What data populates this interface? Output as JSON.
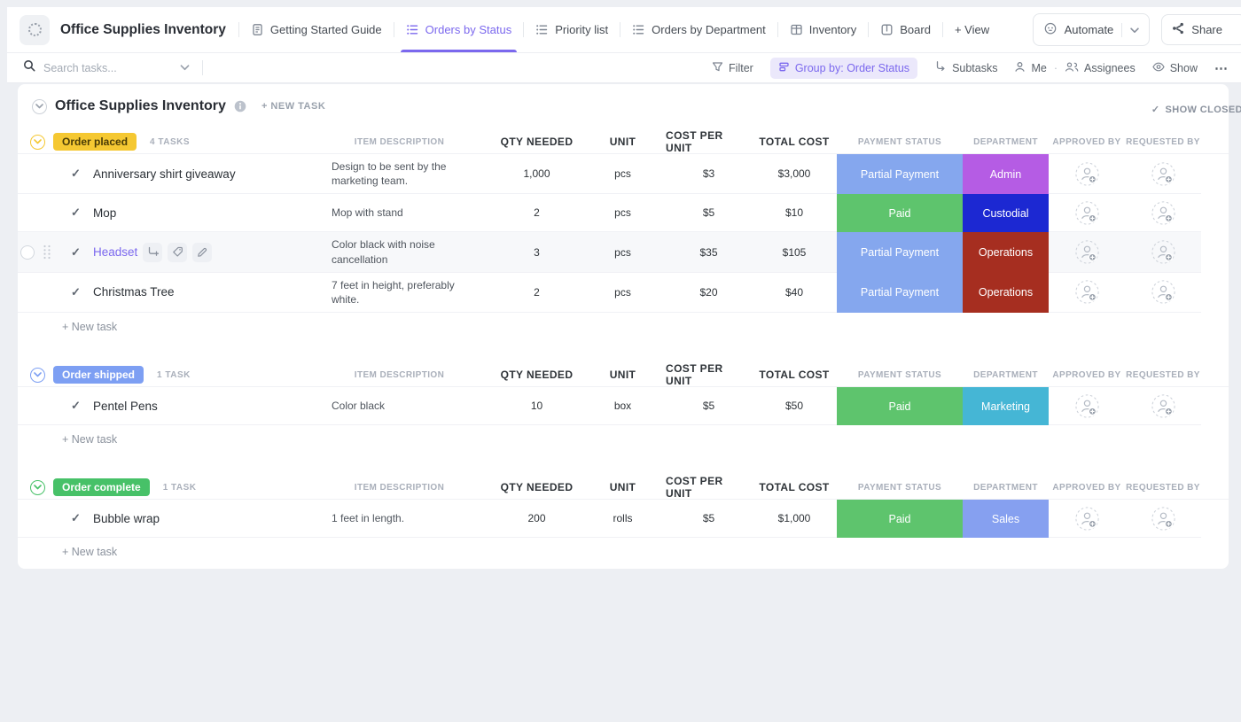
{
  "topbar": {
    "title": "Office Supplies Inventory",
    "tabs": [
      {
        "label": "Getting Started Guide",
        "icon": "doc-icon",
        "active": false
      },
      {
        "label": "Orders by Status",
        "icon": "list-icon",
        "active": true
      },
      {
        "label": "Priority list",
        "icon": "list-icon",
        "active": false
      },
      {
        "label": "Orders by Department",
        "icon": "list-icon",
        "active": false
      },
      {
        "label": "Inventory",
        "icon": "table-icon",
        "active": false
      },
      {
        "label": "Board",
        "icon": "board-icon",
        "active": false
      }
    ],
    "add_view_label": "+ View",
    "automate_label": "Automate",
    "share_label": "Share",
    "accent_color": "#7b68ee"
  },
  "toolbar": {
    "search_placeholder": "Search tasks...",
    "filter_label": "Filter",
    "group_by_label": "Group by: Order Status",
    "subtasks_label": "Subtasks",
    "me_label": "Me",
    "assignees_label": "Assignees",
    "show_label": "Show",
    "more_label": "⋯"
  },
  "list": {
    "title": "Office Supplies Inventory",
    "new_task_header_label": "+ NEW TASK",
    "show_closed_label": "SHOW CLOSED",
    "new_task_label": "+ New task",
    "columns": [
      "ITEM DESCRIPTION",
      "QTY NEEDED",
      "UNIT",
      "COST PER UNIT",
      "TOTAL COST",
      "PAYMENT STATUS",
      "DEPARTMENT",
      "APPROVED BY",
      "REQUESTED BY"
    ],
    "groups": [
      {
        "status": "Order placed",
        "count_label": "4 TASKS",
        "color": "#f5c832",
        "text_color": "#4a3c06",
        "tasks": [
          {
            "name": "Anniversary shirt giveaway",
            "description": "Design to be sent by the marketing team.",
            "qty": "1,000",
            "unit": "pcs",
            "cost_per_unit": "$3",
            "total_cost": "$3,000",
            "payment_status": "Partial Payment",
            "payment_color": "#85a7ee",
            "department": "Admin",
            "department_color": "#b55ce4",
            "hovered": false
          },
          {
            "name": "Mop",
            "description": "Mop with stand",
            "qty": "2",
            "unit": "pcs",
            "cost_per_unit": "$5",
            "total_cost": "$10",
            "payment_status": "Paid",
            "payment_color": "#5ec46d",
            "department": "Custodial",
            "department_color": "#1c28d2",
            "hovered": false
          },
          {
            "name": "Headset",
            "description": "Color black with noise cancellation",
            "qty": "3",
            "unit": "pcs",
            "cost_per_unit": "$35",
            "total_cost": "$105",
            "payment_status": "Partial Payment",
            "payment_color": "#85a7ee",
            "department": "Operations",
            "department_color": "#a62e20",
            "hovered": true
          },
          {
            "name": "Christmas Tree",
            "description": "7 feet in height, preferably white.",
            "qty": "2",
            "unit": "pcs",
            "cost_per_unit": "$20",
            "total_cost": "$40",
            "payment_status": "Partial Payment",
            "payment_color": "#85a7ee",
            "department": "Operations",
            "department_color": "#a62e20",
            "hovered": false
          }
        ]
      },
      {
        "status": "Order shipped",
        "count_label": "1 TASK",
        "color": "#7d9ff3",
        "text_color": "#ffffff",
        "tasks": [
          {
            "name": "Pentel Pens",
            "description": "Color black",
            "qty": "10",
            "unit": "box",
            "cost_per_unit": "$5",
            "total_cost": "$50",
            "payment_status": "Paid",
            "payment_color": "#5ec46d",
            "department": "Marketing",
            "department_color": "#45b6d5",
            "hovered": false
          }
        ]
      },
      {
        "status": "Order complete",
        "count_label": "1 TASK",
        "color": "#47c168",
        "text_color": "#ffffff",
        "tasks": [
          {
            "name": "Bubble wrap",
            "description": "1 feet in length.",
            "qty": "200",
            "unit": "rolls",
            "cost_per_unit": "$5",
            "total_cost": "$1,000",
            "payment_status": "Paid",
            "payment_color": "#5ec46d",
            "department": "Sales",
            "department_color": "#86a0f0",
            "hovered": false
          }
        ]
      }
    ]
  }
}
